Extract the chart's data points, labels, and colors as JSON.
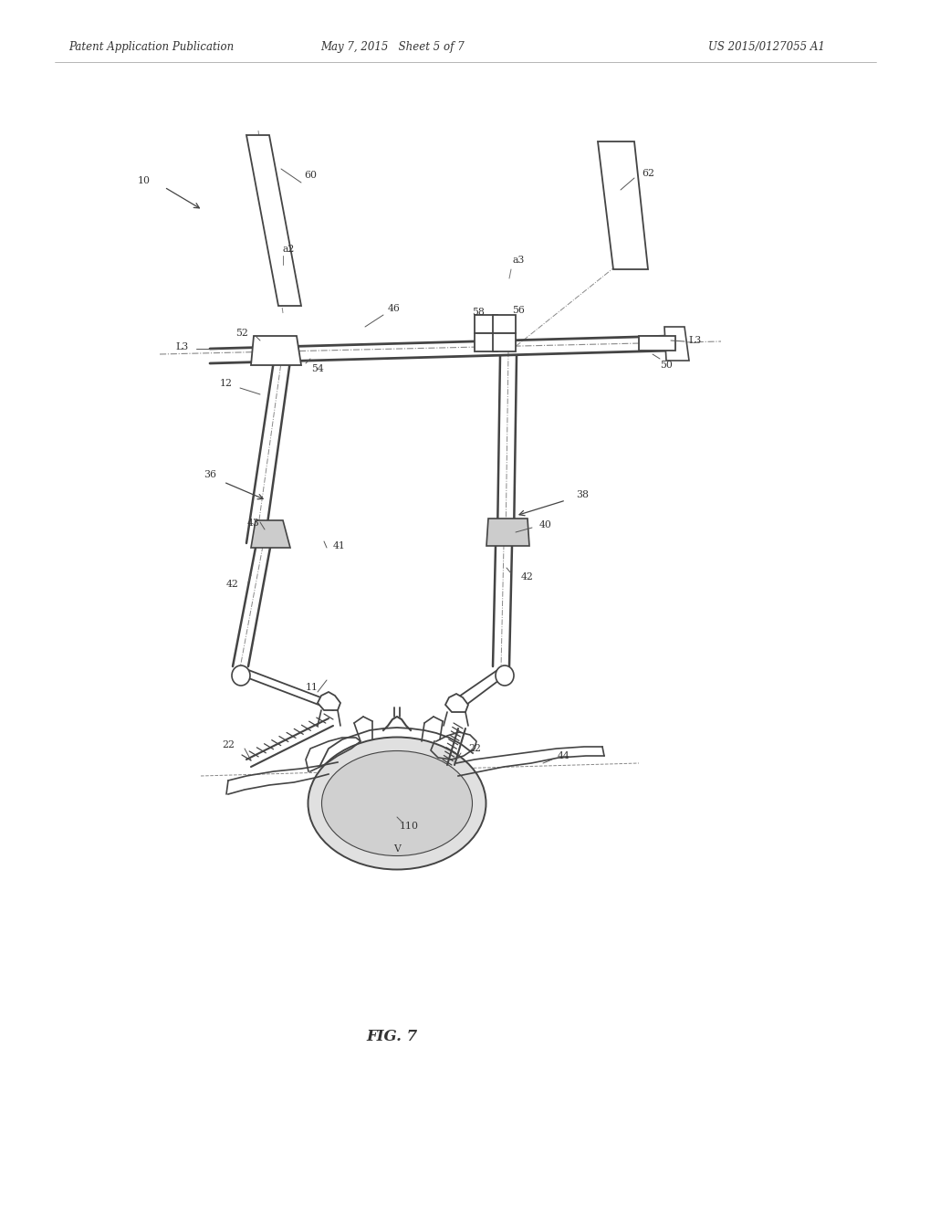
{
  "title": "FIG. 7",
  "header_left": "Patent Application Publication",
  "header_center": "May 7, 2015   Sheet 5 of 7",
  "header_right": "US 2015/0127055 A1",
  "bg_color": "#ffffff",
  "line_color": "#444444",
  "text_color": "#333333",
  "header_font_size": 8.5,
  "title_font_size": 12,
  "fig_width": 10.2,
  "fig_height": 13.2,
  "dpi": 100
}
